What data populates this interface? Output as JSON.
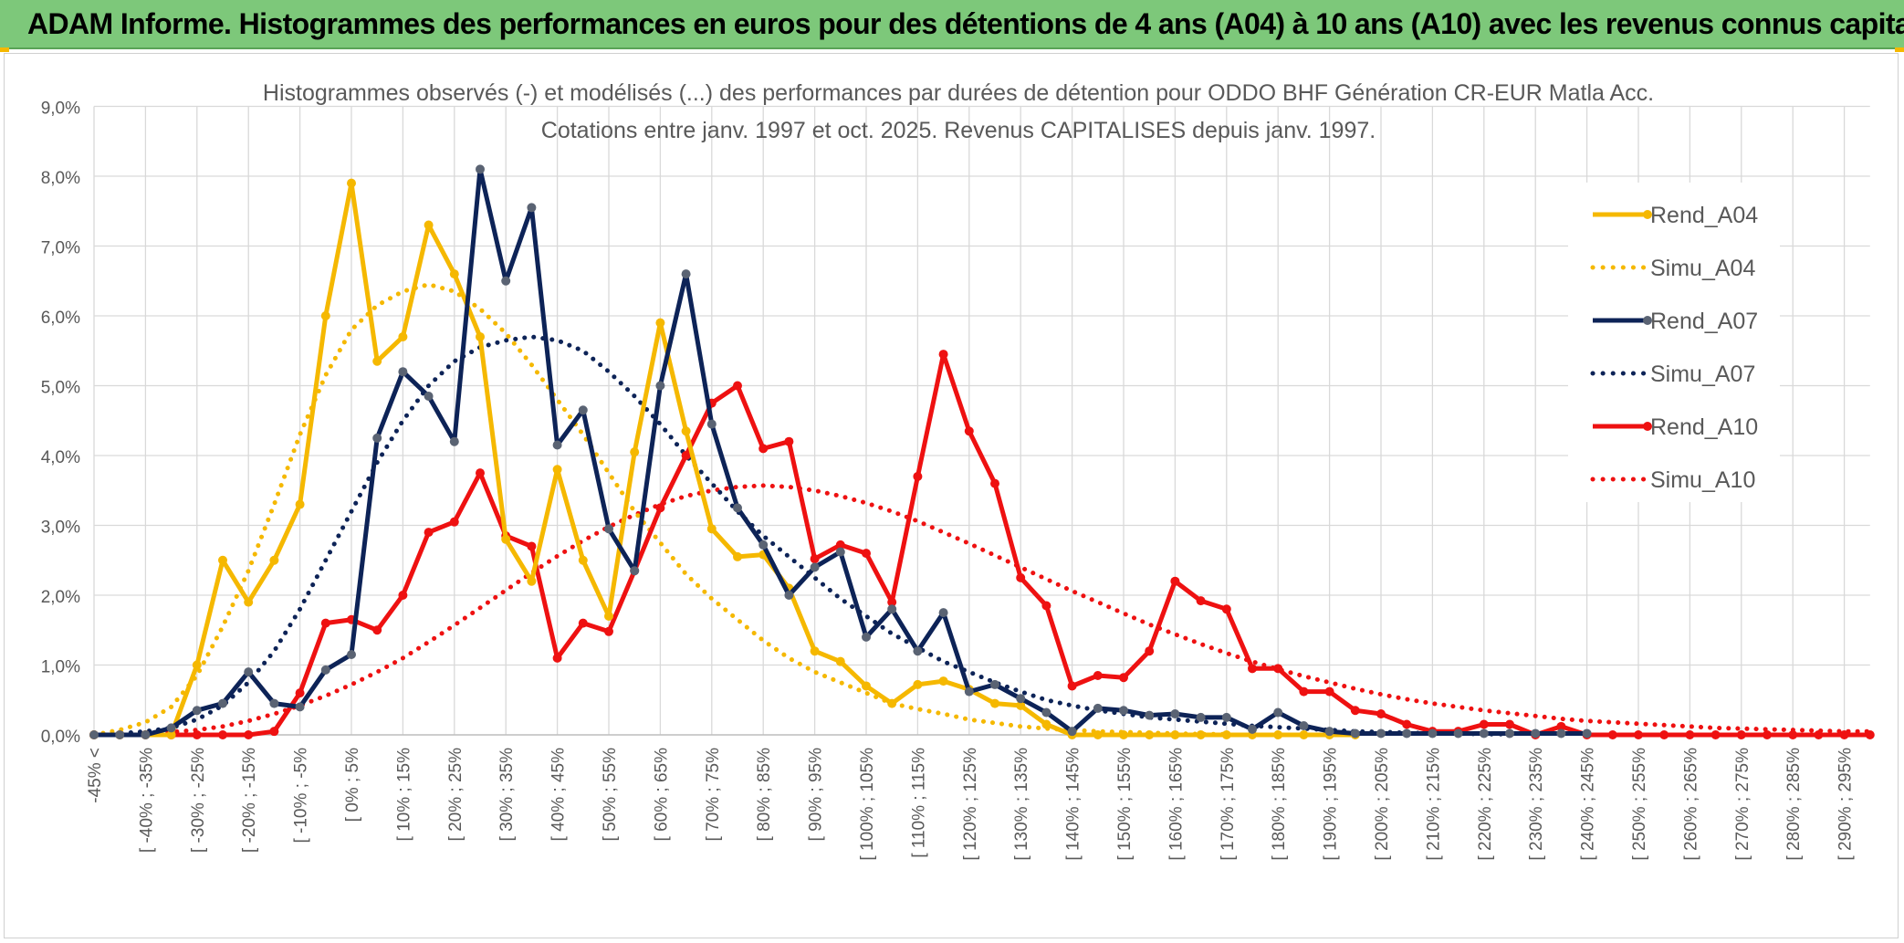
{
  "banner": {
    "title": "ADAM Informe. Histogrammes des performances en euros pour des détentions de 4 ans (A04) à 10 ans (A10) avec les revenus connus capitalisés"
  },
  "colors": {
    "banner_bg": "#7dc87a",
    "a04": "#f5b800",
    "a07": "#0d2357",
    "a07_marker": "#5a6373",
    "a10": "#ee1111",
    "grid": "#d9d9d9"
  },
  "chart_data": {
    "type": "line",
    "title": "Histogrammes observés (-) et modélisés (...) des performances par durées de détention pour ODDO BHF Génération CR-EUR Matla Acc.",
    "subtitle": "Cotations entre janv. 1997 et oct. 2025. Revenus CAPITALISES depuis janv. 1997.",
    "xlabel": "",
    "ylabel": "",
    "ylim": [
      0,
      9
    ],
    "yticks": [
      "0,0%",
      "1,0%",
      "2,0%",
      "3,0%",
      "4,0%",
      "5,0%",
      "6,0%",
      "7,0%",
      "8,0%",
      "9,0%"
    ],
    "grid": true,
    "legend_position": "top-right",
    "categories": [
      "-45% <",
      "[ -45% ; -40%",
      "[ -40% ; -35%",
      "[ -35% ; -30%",
      "[ -30% ; -25%",
      "[ -25% ; -20%",
      "[ -20% ; -15%",
      "[ -15% ; -10%",
      "[ -10% ; -5%",
      "[ -5% ; 0%",
      "[ 0% ; 5%",
      "[ 5% ; 10%",
      "[ 10% ; 15%",
      "[ 15% ; 20%",
      "[ 20% ; 25%",
      "[ 25% ; 30%",
      "[ 30% ; 35%",
      "[ 35% ; 40%",
      "[ 40% ; 45%",
      "[ 45% ; 50%",
      "[ 50% ; 55%",
      "[ 55% ; 60%",
      "[ 60% ; 65%",
      "[ 65% ; 70%",
      "[ 70% ; 75%",
      "[ 75% ; 80%",
      "[ 80% ; 85%",
      "[ 85% ; 90%",
      "[ 90% ; 95%",
      "[ 95% ; 100%",
      "[ 100% ; 105%",
      "[ 105% ; 110%",
      "[ 110% ; 115%",
      "[ 115% ; 120%",
      "[ 120% ; 125%",
      "[ 125% ; 130%",
      "[ 130% ; 135%",
      "[ 135% ; 140%",
      "[ 140% ; 145%",
      "[ 145% ; 150%",
      "[ 150% ; 155%",
      "[ 155% ; 160%",
      "[ 160% ; 165%",
      "[ 165% ; 170%",
      "[ 170% ; 175%",
      "[ 175% ; 180%",
      "[ 180% ; 185%",
      "[ 185% ; 190%",
      "[ 190% ; 195%",
      "[ 195% ; 200%",
      "[ 200% ; 205%",
      "[ 205% ; 210%",
      "[ 210% ; 215%",
      "[ 215% ; 220%",
      "[ 220% ; 225%",
      "[ 225% ; 230%",
      "[ 230% ; 235%",
      "[ 235% ; 240%",
      "[ 240% ; 245%",
      "[ 245% ; 250%",
      "[ 250% ; 255%",
      "[ 255% ; 260%",
      "[ 260% ; 265%",
      "[ 265% ; 270%",
      "[ 270% ; 275%",
      "[ 275% ; 280%",
      "[ 280% ; 285%",
      "[ 285% ; 290%",
      "[ 290% ; 295%",
      "[ 295% ; 300%"
    ],
    "visible_tick_labels": [
      "-45% <",
      "[ -40% ; -35%",
      "[ -30% ; -25%",
      "[ -20% ; -15%",
      "[ -10% ; -5%",
      "[ 0% ; 5%",
      "[ 10% ; 15%",
      "[ 20% ; 25%",
      "[ 30% ; 35%",
      "[ 40% ; 45%",
      "[ 50% ; 55%",
      "[ 60% ; 65%",
      "[ 70% ; 75%",
      "[ 80% ; 85%",
      "[ 90% ; 95%",
      "[ 100% ; 105%",
      "[ 110% ; 115%",
      "[ 120% ; 125%",
      "[ 130% ; 135%",
      "[ 140% ; 145%",
      "[ 150% ; 155%",
      "[ 160% ; 165%",
      "[ 170% ; 175%",
      "[ 180% ; 185%",
      "[ 190% ; 195%",
      "[ 200% ; 205%",
      "[ 210% ; 215%",
      "[ 220% ; 225%",
      "[ 230% ; 235%",
      "[ 240% ; 245%",
      "[ 250% ; 255%",
      "[ 260% ; 265%",
      "[ 270% ; 275%",
      "[ 280% ; 285%",
      "[ 290% ; 295%"
    ],
    "series": [
      {
        "name": "Rend_A04",
        "style": "solid",
        "color": "#f5b800",
        "values": [
          0.0,
          0.0,
          0.0,
          0.0,
          1.0,
          2.5,
          1.9,
          2.5,
          3.3,
          6.0,
          7.9,
          5.35,
          5.7,
          7.3,
          6.6,
          5.7,
          2.8,
          2.2,
          3.8,
          2.5,
          1.7,
          4.05,
          5.9,
          4.35,
          2.95,
          2.55,
          2.58,
          2.1,
          1.2,
          1.05,
          0.7,
          0.45,
          0.72,
          0.77,
          0.65,
          0.45,
          0.42,
          0.15,
          0.0,
          0.0,
          0.0,
          0.0,
          0.0,
          0.0,
          0.0,
          0.0,
          0.0,
          0.0,
          0.0,
          0.0,
          null,
          null,
          null,
          null,
          null,
          null,
          null,
          null,
          null,
          null,
          null,
          null,
          null,
          null,
          null,
          null,
          null,
          null,
          null,
          null
        ]
      },
      {
        "name": "Simu_A04",
        "style": "dotted",
        "color": "#f5b800",
        "values": [
          0.0,
          0.07,
          0.18,
          0.4,
          0.85,
          1.55,
          2.35,
          3.3,
          4.3,
          5.15,
          5.8,
          6.15,
          6.35,
          6.45,
          6.35,
          6.1,
          5.75,
          5.3,
          4.8,
          4.3,
          3.75,
          3.2,
          2.75,
          2.3,
          1.95,
          1.65,
          1.35,
          1.1,
          0.9,
          0.75,
          0.6,
          0.45,
          0.37,
          0.3,
          0.22,
          0.17,
          0.12,
          0.09,
          0.07,
          0.05,
          0.04,
          0.03,
          0.02,
          0.01,
          0.01,
          null,
          null,
          null,
          null,
          null,
          null,
          null,
          null,
          null,
          null,
          null,
          null,
          null,
          null,
          null,
          null,
          null,
          null,
          null,
          null,
          null,
          null,
          null,
          null,
          null
        ]
      },
      {
        "name": "Rend_A07",
        "style": "solid",
        "color": "#0d2357",
        "values": [
          0.0,
          0.0,
          0.0,
          0.1,
          0.35,
          0.45,
          0.9,
          0.45,
          0.4,
          0.93,
          1.15,
          4.25,
          5.2,
          4.85,
          4.2,
          8.1,
          6.5,
          7.55,
          4.15,
          4.65,
          2.95,
          2.35,
          5.0,
          6.6,
          4.45,
          3.25,
          2.72,
          2.0,
          2.4,
          2.62,
          1.4,
          1.8,
          1.2,
          1.75,
          0.62,
          0.72,
          0.52,
          0.32,
          0.05,
          0.38,
          0.35,
          0.28,
          0.3,
          0.25,
          0.25,
          0.08,
          0.32,
          0.13,
          0.05,
          0.02,
          0.02,
          0.02,
          0.02,
          0.02,
          0.02,
          0.02,
          0.02,
          0.02,
          0.02,
          null,
          null,
          null,
          null,
          null,
          null,
          null,
          null,
          null,
          null,
          null
        ]
      },
      {
        "name": "Simu_A07",
        "style": "dotted",
        "color": "#0d2357",
        "values": [
          0.0,
          0.02,
          0.05,
          0.1,
          0.22,
          0.42,
          0.75,
          1.2,
          1.8,
          2.5,
          3.2,
          3.9,
          4.5,
          5.0,
          5.35,
          5.55,
          5.65,
          5.7,
          5.65,
          5.5,
          5.2,
          4.85,
          4.45,
          4.0,
          3.6,
          3.2,
          2.85,
          2.55,
          2.25,
          1.95,
          1.7,
          1.45,
          1.25,
          1.05,
          0.9,
          0.75,
          0.62,
          0.5,
          0.42,
          0.35,
          0.3,
          0.25,
          0.22,
          0.19,
          0.16,
          0.13,
          0.11,
          0.09,
          0.07,
          0.05,
          0.04,
          0.03,
          0.02,
          0.02,
          0.01,
          0.01,
          null,
          null,
          null,
          null,
          null,
          null,
          null,
          null,
          null,
          null,
          null,
          null,
          null,
          null
        ]
      },
      {
        "name": "Rend_A10",
        "style": "solid",
        "color": "#ee1111",
        "values": [
          0.0,
          0.0,
          0.0,
          0.0,
          0.0,
          0.0,
          0.0,
          0.05,
          0.6,
          1.6,
          1.65,
          1.5,
          2.0,
          2.9,
          3.05,
          3.75,
          2.85,
          2.7,
          1.1,
          1.6,
          1.48,
          2.35,
          3.25,
          4.0,
          4.75,
          5.0,
          4.1,
          4.2,
          2.52,
          2.72,
          2.6,
          1.9,
          3.7,
          5.45,
          4.35,
          3.6,
          2.25,
          1.85,
          0.7,
          0.85,
          0.82,
          1.2,
          2.2,
          1.92,
          1.8,
          0.95,
          0.95,
          0.62,
          0.62,
          0.35,
          0.3,
          0.15,
          0.05,
          0.05,
          0.15,
          0.15,
          0.0,
          0.12,
          0.0,
          0.0,
          0.0,
          0.0,
          0.0,
          0.0,
          0.0,
          0.0,
          0.0,
          0.0,
          0.0,
          0.0
        ]
      },
      {
        "name": "Simu_A10",
        "style": "dotted",
        "color": "#ee1111",
        "values": [
          0.0,
          0.01,
          0.02,
          0.04,
          0.07,
          0.12,
          0.2,
          0.3,
          0.42,
          0.56,
          0.72,
          0.9,
          1.1,
          1.33,
          1.57,
          1.82,
          2.07,
          2.32,
          2.56,
          2.78,
          2.98,
          3.15,
          3.3,
          3.42,
          3.5,
          3.55,
          3.57,
          3.55,
          3.5,
          3.42,
          3.32,
          3.2,
          3.06,
          2.9,
          2.74,
          2.57,
          2.4,
          2.23,
          2.06,
          1.9,
          1.74,
          1.58,
          1.44,
          1.3,
          1.17,
          1.05,
          0.94,
          0.84,
          0.75,
          0.66,
          0.58,
          0.51,
          0.45,
          0.4,
          0.35,
          0.31,
          0.27,
          0.23,
          0.2,
          0.18,
          0.16,
          0.14,
          0.12,
          0.1,
          0.09,
          0.08,
          0.07,
          0.06,
          0.05,
          0.05
        ]
      }
    ]
  }
}
